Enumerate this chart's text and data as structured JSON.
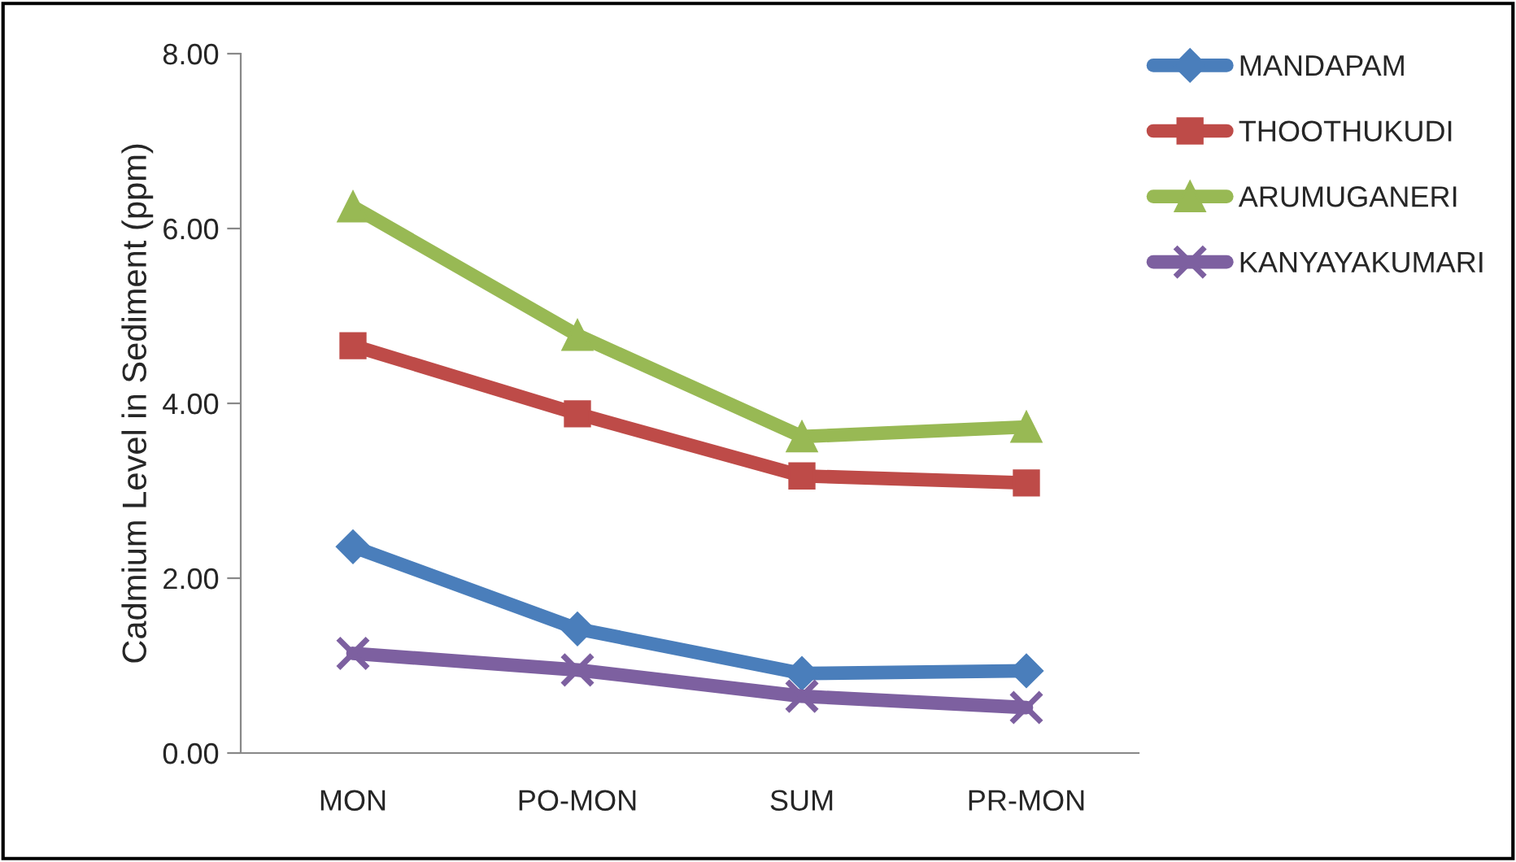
{
  "chart_data": {
    "type": "line",
    "ylabel": "Cadmium Level in Sediment (ppm)",
    "categories": [
      "MON",
      "PO-MON",
      "SUM",
      "PR-MON"
    ],
    "series": [
      {
        "name": "MANDAPAM",
        "color": "#4a7ebb",
        "marker": "diamond",
        "values": [
          2.36,
          1.42,
          0.91,
          0.94
        ]
      },
      {
        "name": "THOOTHUKUDI",
        "color": "#be4b48",
        "marker": "square",
        "values": [
          4.66,
          3.88,
          3.17,
          3.09
        ]
      },
      {
        "name": "ARUMUGANERI",
        "color": "#98b954",
        "marker": "triangle",
        "values": [
          6.25,
          4.78,
          3.62,
          3.73
        ]
      },
      {
        "name": "KANYAYAKUMARI",
        "color": "#7d60a0",
        "marker": "cross",
        "values": [
          1.14,
          0.95,
          0.65,
          0.52
        ]
      }
    ],
    "ylim": [
      0,
      8
    ],
    "yticks": [
      {
        "value": 0,
        "label": "0.00"
      },
      {
        "value": 2,
        "label": "2.00"
      },
      {
        "value": 4,
        "label": "4.00"
      },
      {
        "value": 6,
        "label": "6.00"
      },
      {
        "value": 8,
        "label": "8.00"
      }
    ],
    "grid": false,
    "legend": "top right"
  }
}
